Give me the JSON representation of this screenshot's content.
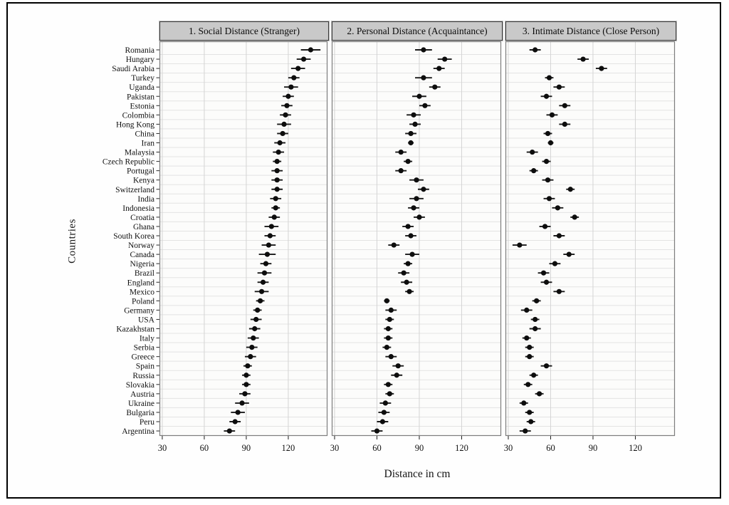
{
  "figure": {
    "type_note": "three-panel horizontal dot plot with error bars"
  },
  "chart_data": {
    "type": "scatter",
    "title": "",
    "xlabel": "Distance in cm",
    "ylabel": "Countries",
    "x_ticks": [
      30,
      60,
      90,
      120
    ],
    "x_range": [
      28,
      148
    ],
    "grid": true,
    "legend_position": "panel headers (top strips)",
    "panel_titles": [
      "1. Social Distance (Stranger)",
      "2. Personal Distance (Acquaintance)",
      "3. Intimate Distance (Close Person)"
    ],
    "categories": [
      "Romania",
      "Hungary",
      "Saudi Arabia",
      "Turkey",
      "Uganda",
      "Pakistan",
      "Estonia",
      "Colombia",
      "Hong Kong",
      "China",
      "Iran",
      "Malaysia",
      "Czech Republic",
      "Portugal",
      "Kenya",
      "Switzerland",
      "India",
      "Indonesia",
      "Croatia",
      "Ghana",
      "South Korea",
      "Norway",
      "Canada",
      "Nigeria",
      "Brazil",
      "England",
      "Mexico",
      "Poland",
      "Germany",
      "USA",
      "Kazakhstan",
      "Italy",
      "Serbia",
      "Greece",
      "Spain",
      "Russia",
      "Slovakia",
      "Austria",
      "Ukraine",
      "Bulgaria",
      "Peru",
      "Argentina"
    ],
    "series": [
      {
        "name": "1. Social Distance (Stranger)",
        "values": [
          136,
          131,
          127,
          124,
          122,
          120,
          119,
          118,
          117,
          116,
          114,
          113,
          112,
          112,
          112,
          112,
          111,
          111,
          110,
          108,
          107,
          106,
          105,
          104,
          103,
          102,
          101,
          100,
          98,
          97,
          96,
          95,
          94,
          93,
          91,
          90,
          90,
          89,
          87,
          84,
          82,
          78
        ],
        "errors": [
          7,
          5,
          5,
          4,
          5,
          4,
          4,
          4,
          5,
          4,
          4,
          4,
          3,
          4,
          4,
          4,
          4,
          3,
          4,
          5,
          4,
          5,
          6,
          4,
          5,
          4,
          5,
          3,
          3,
          4,
          4,
          4,
          4,
          4,
          3,
          3,
          3,
          4,
          5,
          5,
          4,
          4
        ]
      },
      {
        "name": "2. Personal Distance (Acquaintance)",
        "values": [
          93,
          108,
          104,
          93,
          101,
          90,
          94,
          86,
          87,
          84,
          84,
          77,
          82,
          77,
          88,
          93,
          88,
          86,
          90,
          82,
          84,
          72,
          85,
          82,
          79,
          81,
          83,
          67,
          70,
          69,
          68,
          68,
          67,
          70,
          75,
          74,
          68,
          69,
          66,
          65,
          64,
          60
        ],
        "errors": [
          6,
          5,
          4,
          6,
          4,
          5,
          4,
          5,
          4,
          4,
          2,
          4,
          3,
          4,
          5,
          4,
          5,
          4,
          4,
          4,
          4,
          4,
          5,
          3,
          4,
          4,
          3,
          2,
          4,
          3,
          3,
          3,
          3,
          4,
          4,
          4,
          3,
          3,
          4,
          4,
          4,
          4
        ]
      },
      {
        "name": "3. Intimate Distance (Close Person)",
        "values": [
          49,
          83,
          96,
          59,
          66,
          57,
          70,
          61,
          70,
          58,
          60,
          47,
          57,
          48,
          58,
          74,
          59,
          65,
          77,
          56,
          66,
          38,
          73,
          63,
          55,
          57,
          66,
          50,
          43,
          49,
          49,
          43,
          45,
          45,
          57,
          48,
          44,
          52,
          41,
          45,
          46,
          42
        ],
        "errors": [
          4,
          4,
          4,
          3,
          4,
          4,
          4,
          4,
          4,
          3,
          2,
          4,
          3,
          3,
          4,
          3,
          4,
          4,
          3,
          4,
          4,
          5,
          4,
          4,
          4,
          4,
          4,
          3,
          4,
          3,
          4,
          3,
          3,
          3,
          4,
          3,
          3,
          3,
          3,
          3,
          3,
          4
        ]
      }
    ],
    "colors": {
      "point": "#0d0d0d",
      "error_bar": "#1a1a1a",
      "header_bg": "#c9c9c9",
      "grid_vertical": "#d4d4d4",
      "grid_horizontal": "#e3e3e3",
      "panel_border": "#7d7d7d",
      "frame_border": "#000000"
    }
  }
}
